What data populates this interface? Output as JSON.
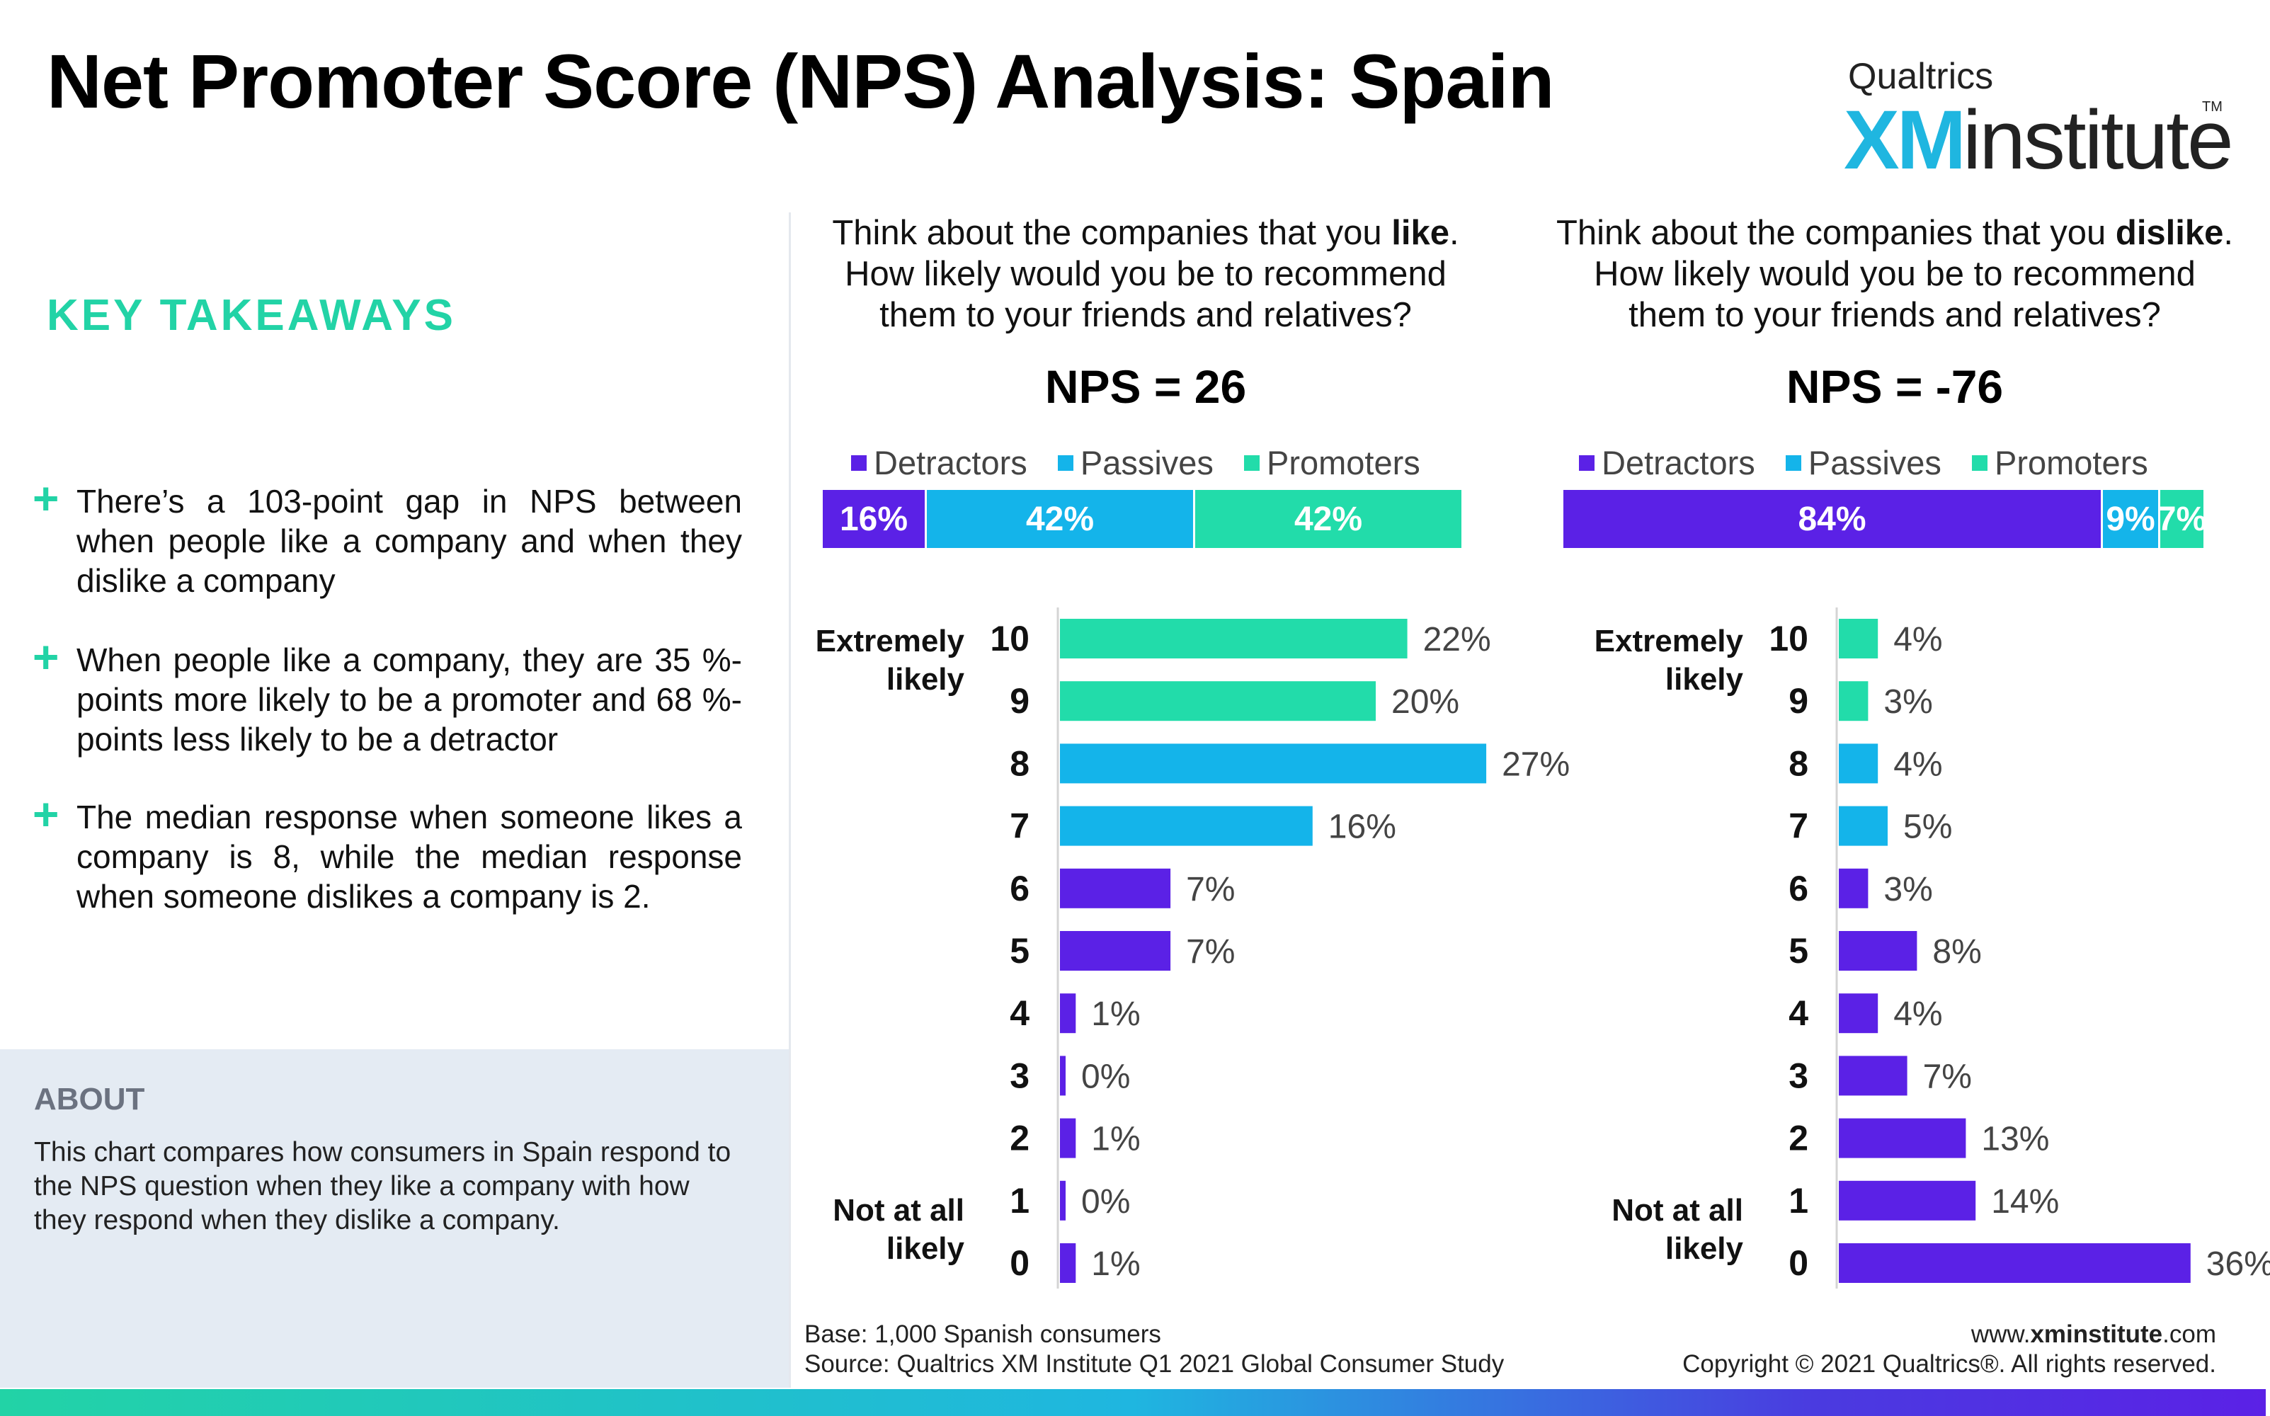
{
  "header": {
    "title": "Net Promoter Score (NPS) Analysis: Spain",
    "logo_brand": "Qualtrics",
    "logo_xm": "XM",
    "logo_institute": "institute",
    "logo_tm": "TM"
  },
  "takeaways": {
    "heading": "KEY TAKEAWAYS",
    "items": [
      "There’s a 103-point gap in NPS between when people like a company and when they dislike a company",
      "When people like a company, they are 35 %-points more likely to be a promoter and 68 %-points less likely to be a detractor",
      "The median response when someone likes a company is 8, while the median response when someone dislikes a company is 2."
    ],
    "bullet": "+"
  },
  "about": {
    "heading": "ABOUT",
    "text": "This chart compares how consumers in Spain respond to the NPS question when they like a company with how they respond when they dislike a company."
  },
  "colors": {
    "detractors": "#5b21e6",
    "passives": "#14b4ea",
    "promoters": "#22dcaa",
    "accent": "#22d3a6",
    "label_gray": "#444444"
  },
  "chart_data": [
    {
      "type": "bar",
      "orientation": "horizontal",
      "question_prefix": "Think about the companies that you ",
      "question_emphasis": "like",
      "question_line2": "How likely would you be to recommend",
      "question_line3": "them to your friends and relatives?",
      "nps_label": "NPS = 26",
      "legend": [
        "Detractors",
        "Passives",
        "Promoters"
      ],
      "stacked": [
        {
          "name": "Detractors",
          "value": 16,
          "label": "16%"
        },
        {
          "name": "Passives",
          "value": 42,
          "label": "42%"
        },
        {
          "name": "Promoters",
          "value": 42,
          "label": "42%"
        }
      ],
      "categories": [
        "10",
        "9",
        "8",
        "7",
        "6",
        "5",
        "4",
        "3",
        "2",
        "1",
        "0"
      ],
      "values": [
        22,
        20,
        27,
        16,
        7,
        7,
        1,
        0,
        1,
        0,
        1
      ],
      "value_labels": [
        "22%",
        "20%",
        "27%",
        "16%",
        "7%",
        "7%",
        "1%",
        "0%",
        "1%",
        "0%",
        "1%"
      ],
      "top_anchor": "Extremely likely",
      "bottom_anchor": "Not at all likely"
    },
    {
      "type": "bar",
      "orientation": "horizontal",
      "question_prefix": "Think about the companies that you ",
      "question_emphasis": "dislike",
      "question_line2": "How likely would you be to recommend",
      "question_line3": "them to your friends and relatives?",
      "nps_label": "NPS = -76",
      "legend": [
        "Detractors",
        "Passives",
        "Promoters"
      ],
      "stacked": [
        {
          "name": "Detractors",
          "value": 84,
          "label": "84%"
        },
        {
          "name": "Passives",
          "value": 9,
          "label": "9%"
        },
        {
          "name": "Promoters",
          "value": 7,
          "label": "7%"
        }
      ],
      "categories": [
        "10",
        "9",
        "8",
        "7",
        "6",
        "5",
        "4",
        "3",
        "2",
        "1",
        "0"
      ],
      "values": [
        4,
        3,
        4,
        5,
        3,
        8,
        4,
        7,
        13,
        14,
        36
      ],
      "value_labels": [
        "4%",
        "3%",
        "4%",
        "5%",
        "3%",
        "8%",
        "4%",
        "7%",
        "13%",
        "14%",
        "36%"
      ],
      "top_anchor": "Extremely likely",
      "bottom_anchor": "Not at all likely"
    }
  ],
  "footer": {
    "base": "Base: 1,000 Spanish consumers",
    "source": "Source: Qualtrics XM Institute Q1 2021 Global Consumer Study",
    "site_prefix": "www.",
    "site_bold": "xminstitute",
    "site_suffix": ".com",
    "copyright": "Copyright © 2021 Qualtrics®. All rights reserved."
  }
}
